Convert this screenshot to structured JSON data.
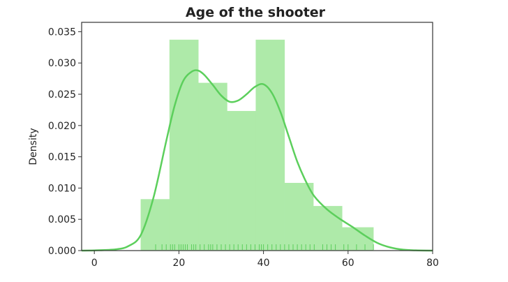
{
  "chart_data": {
    "type": "histogram",
    "title": "Age of the shooter",
    "xlabel": "",
    "ylabel": "Density",
    "xlim": [
      -3,
      80
    ],
    "ylim": [
      0,
      0.0365
    ],
    "xticks": [
      0,
      20,
      40,
      60,
      80
    ],
    "yticks": [
      0.0,
      0.005,
      0.01,
      0.015,
      0.02,
      0.025,
      0.03,
      0.035
    ],
    "ytick_labels": [
      "0.000",
      "0.005",
      "0.010",
      "0.015",
      "0.020",
      "0.025",
      "0.030",
      "0.035"
    ],
    "xtick_labels": [
      "0",
      "20",
      "40",
      "60",
      "80"
    ],
    "grid": false,
    "bins": [
      {
        "x0": 11,
        "x1": 17.8,
        "density": 0.0082
      },
      {
        "x0": 17.8,
        "x1": 24.6,
        "density": 0.0337
      },
      {
        "x0": 24.6,
        "x1": 31.4,
        "density": 0.0268
      },
      {
        "x0": 31.4,
        "x1": 38.2,
        "density": 0.0223
      },
      {
        "x0": 38.2,
        "x1": 45.0,
        "density": 0.0337
      },
      {
        "x0": 45.0,
        "x1": 51.8,
        "density": 0.0108
      },
      {
        "x0": 51.8,
        "x1": 58.6,
        "density": 0.0071
      },
      {
        "x0": 58.6,
        "x1": 66.0,
        "density": 0.0037
      }
    ],
    "kde": {
      "x": [
        -3,
        0,
        5,
        8,
        11,
        14,
        17,
        19,
        21,
        23,
        24.5,
        26,
        28,
        30,
        32,
        34,
        36,
        38,
        40,
        42,
        44,
        46,
        48,
        50,
        52,
        55,
        58,
        61,
        64,
        67,
        70,
        73,
        76,
        80
      ],
      "y": [
        0.0,
        3e-05,
        0.0002,
        0.0007,
        0.0025,
        0.0085,
        0.0175,
        0.0232,
        0.0271,
        0.0286,
        0.0288,
        0.0281,
        0.0265,
        0.0248,
        0.0238,
        0.024,
        0.025,
        0.0262,
        0.0266,
        0.0252,
        0.0222,
        0.0182,
        0.0142,
        0.0111,
        0.0087,
        0.0066,
        0.0051,
        0.0038,
        0.0024,
        0.0012,
        0.0005,
        0.00015,
        4e-05,
        0.0
      ]
    },
    "rug": [
      14.5,
      16,
      17,
      18,
      18.5,
      19,
      20,
      20.5,
      21,
      21.5,
      22,
      23,
      23.5,
      24,
      25,
      26,
      27,
      27.5,
      28,
      29,
      30,
      31,
      32,
      33,
      34,
      35,
      36,
      37,
      38,
      39,
      39.5,
      40,
      41,
      42,
      43,
      44,
      45,
      46,
      47,
      48,
      49,
      50,
      51,
      52,
      54,
      55,
      56,
      57,
      59,
      60,
      62,
      64,
      66
    ],
    "colors": {
      "bar_fill": "#aeeaa9",
      "kde_line": "#5ccf5c",
      "rug": "#5ccf5c",
      "axis": "#333333",
      "text": "#222222"
    }
  }
}
